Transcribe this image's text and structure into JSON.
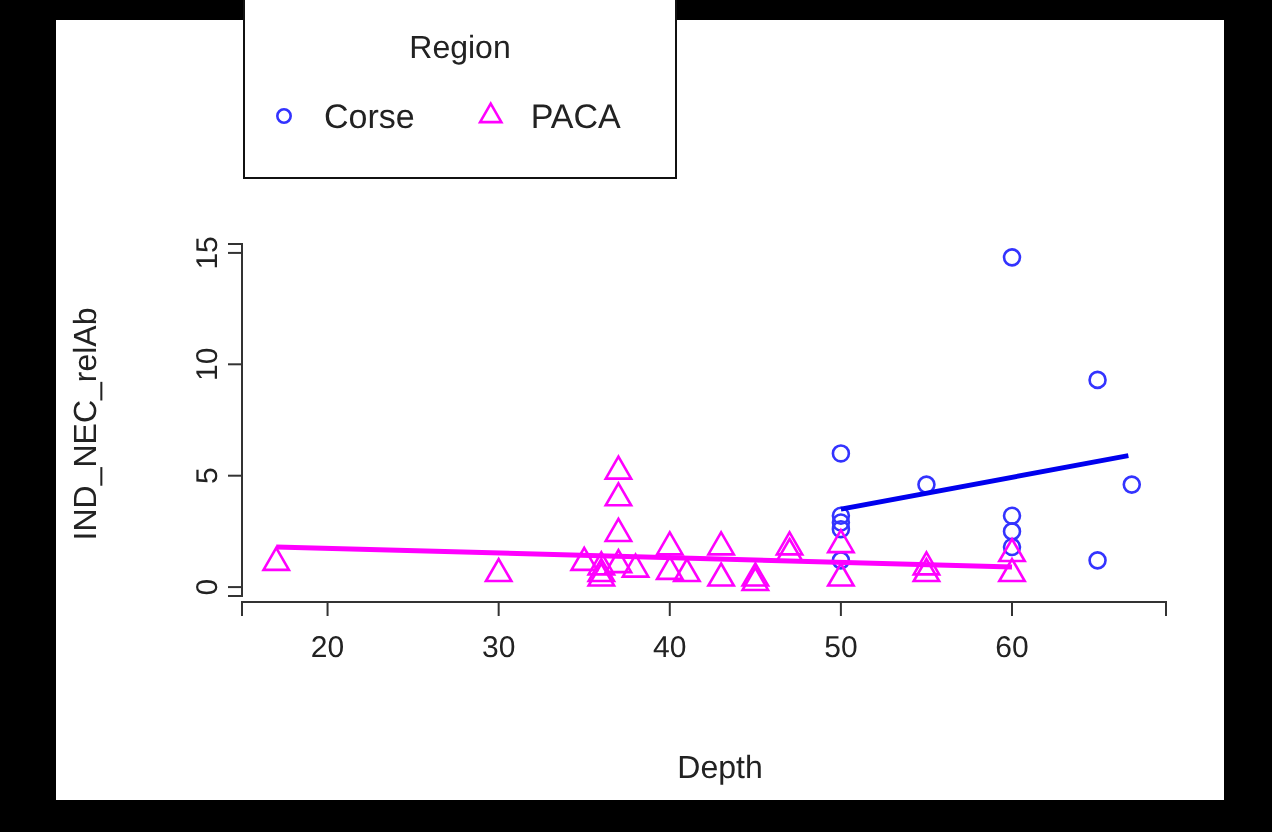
{
  "chart_data": {
    "type": "scatter",
    "xlabel": "Depth",
    "ylabel": "IND_NEC_relAb",
    "legend_title": "Region",
    "legend": "top left",
    "xlim": [
      15,
      69
    ],
    "xticks": [
      20,
      30,
      40,
      50,
      60
    ],
    "ylim": [
      -0.4,
      15.4
    ],
    "yticks": [
      0,
      5,
      10,
      15
    ],
    "grid": false,
    "series": [
      {
        "name": "Corse",
        "marker": "circle",
        "color": "#3333ff",
        "x": [
          50,
          50,
          50,
          50,
          50,
          55,
          60,
          60,
          60,
          60,
          65,
          65,
          67
        ],
        "values": [
          6.0,
          3.2,
          2.9,
          2.6,
          1.2,
          4.6,
          14.8,
          3.2,
          2.5,
          1.8,
          9.3,
          1.2,
          4.6
        ]
      },
      {
        "name": "PACA",
        "marker": "triangle",
        "color": "#ff00ff",
        "x": [
          17,
          30,
          35,
          36,
          36,
          36,
          37,
          37,
          37,
          37,
          38,
          40,
          40,
          41,
          43,
          43,
          45,
          45,
          47,
          47,
          50,
          50,
          55,
          55,
          60,
          60
        ],
        "values": [
          1.1,
          0.6,
          1.1,
          0.9,
          0.6,
          0.4,
          5.2,
          4.0,
          2.4,
          1.0,
          0.8,
          1.8,
          0.7,
          0.6,
          1.8,
          0.4,
          0.4,
          0.2,
          1.8,
          1.5,
          1.9,
          0.4,
          0.9,
          0.6,
          1.5,
          0.6
        ]
      },
      {
        "type": "line",
        "marker": "none",
        "color": "#0000ee",
        "x": [
          50,
          66.8
        ],
        "values": [
          3.5,
          5.9
        ]
      },
      {
        "type": "line",
        "marker": "none",
        "color": "#ff00ff",
        "x": [
          17,
          60
        ],
        "values": [
          1.8,
          0.9
        ]
      }
    ]
  }
}
